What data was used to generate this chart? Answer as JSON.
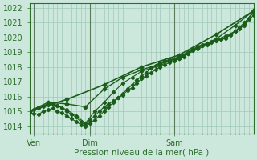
{
  "title": "",
  "xlabel": "Pression niveau de la mer( hPa )",
  "ylabel": "",
  "bg_color": "#cce8dc",
  "line_color": "#1a5c1a",
  "grid_color": "#a0c8b8",
  "axis_color": "#2d6e2d",
  "vline_color": "#5a7a5a",
  "ylim": [
    1013.5,
    1022.3
  ],
  "xlim": [
    0,
    96
  ],
  "xtick_positions": [
    2,
    26,
    62
  ],
  "xtick_labels": [
    "Ven",
    "Dim",
    "Sam"
  ],
  "vline_positions": [
    2,
    26,
    62
  ],
  "ytick_positions": [
    1014,
    1015,
    1016,
    1017,
    1018,
    1019,
    1020,
    1021,
    1022
  ],
  "ytick_labels": [
    "1014",
    "1015",
    "1016",
    "1017",
    "1018",
    "1019",
    "1020",
    "1021",
    "1022"
  ],
  "series": [
    {
      "x": [
        0,
        2,
        4,
        6,
        8,
        10,
        12,
        14,
        16,
        18,
        20,
        22,
        24,
        26,
        28,
        30,
        32,
        34,
        36,
        38,
        40,
        42,
        44,
        46,
        48,
        50,
        52,
        54,
        56,
        58,
        60,
        62,
        64,
        66,
        68,
        70,
        72,
        74,
        76,
        78,
        80,
        82,
        84,
        86,
        88,
        90,
        92,
        94,
        96
      ],
      "y": [
        1014.9,
        1014.85,
        1014.8,
        1015.0,
        1015.1,
        1015.2,
        1015.0,
        1014.9,
        1014.7,
        1014.5,
        1014.3,
        1014.1,
        1014.0,
        1014.2,
        1014.4,
        1014.7,
        1015.0,
        1015.3,
        1015.6,
        1015.9,
        1016.2,
        1016.5,
        1016.8,
        1017.1,
        1017.4,
        1017.6,
        1017.9,
        1018.1,
        1018.3,
        1018.4,
        1018.5,
        1018.5,
        1018.6,
        1018.8,
        1019.0,
        1019.2,
        1019.4,
        1019.5,
        1019.6,
        1019.7,
        1019.8,
        1019.9,
        1020.0,
        1020.2,
        1020.4,
        1020.6,
        1020.8,
        1021.2,
        1021.5
      ],
      "marker": "D",
      "markersize": 2.2,
      "linewidth": 0.8,
      "linestyle": "-"
    },
    {
      "x": [
        0,
        2,
        4,
        6,
        8,
        10,
        12,
        14,
        16,
        18,
        20,
        22,
        24,
        26,
        28,
        30,
        32,
        34,
        36,
        38,
        40,
        42,
        44,
        46,
        48,
        50,
        52,
        54,
        56,
        58,
        60,
        62,
        64,
        66,
        68,
        70,
        72,
        74,
        76,
        78,
        80,
        82,
        84,
        86,
        88,
        90,
        92,
        94,
        96
      ],
      "y": [
        1015.0,
        1015.1,
        1015.2,
        1015.35,
        1015.45,
        1015.5,
        1015.4,
        1015.2,
        1015.0,
        1014.8,
        1014.6,
        1014.3,
        1014.05,
        1014.4,
        1014.7,
        1015.0,
        1015.3,
        1015.5,
        1015.7,
        1015.9,
        1016.1,
        1016.4,
        1016.6,
        1016.9,
        1017.2,
        1017.4,
        1017.6,
        1017.8,
        1018.0,
        1018.15,
        1018.3,
        1018.4,
        1018.55,
        1018.7,
        1018.9,
        1019.1,
        1019.3,
        1019.45,
        1019.55,
        1019.65,
        1019.75,
        1019.85,
        1019.95,
        1020.15,
        1020.4,
        1020.7,
        1021.0,
        1021.3,
        1021.7
      ],
      "marker": "D",
      "markersize": 2.2,
      "linewidth": 0.8,
      "linestyle": "-"
    },
    {
      "x": [
        0,
        4,
        8,
        12,
        16,
        20,
        24,
        28,
        32,
        36,
        40,
        44,
        48,
        52,
        56,
        60,
        64,
        68,
        72,
        76,
        80,
        84,
        88,
        92,
        96
      ],
      "y": [
        1015.0,
        1015.3,
        1015.5,
        1015.4,
        1015.1,
        1014.7,
        1014.2,
        1015.0,
        1015.6,
        1016.3,
        1016.9,
        1017.3,
        1017.7,
        1017.9,
        1018.1,
        1018.4,
        1018.6,
        1018.9,
        1019.2,
        1019.5,
        1019.8,
        1020.1,
        1020.4,
        1020.9,
        1021.8
      ],
      "marker": "D",
      "markersize": 2.2,
      "linewidth": 0.8,
      "linestyle": "-"
    },
    {
      "x": [
        0,
        8,
        16,
        24,
        32,
        40,
        48,
        56,
        64,
        72,
        80,
        88,
        96
      ],
      "y": [
        1015.0,
        1015.6,
        1015.5,
        1015.3,
        1016.5,
        1017.3,
        1017.8,
        1018.2,
        1018.7,
        1019.3,
        1019.9,
        1020.8,
        1021.8
      ],
      "marker": "D",
      "markersize": 2.5,
      "linewidth": 1.0,
      "linestyle": "-"
    },
    {
      "x": [
        0,
        16,
        32,
        48,
        64,
        80,
        96
      ],
      "y": [
        1015.0,
        1015.8,
        1016.8,
        1018.0,
        1018.8,
        1020.2,
        1021.8
      ],
      "marker": "D",
      "markersize": 2.5,
      "linewidth": 1.2,
      "linestyle": "-"
    }
  ]
}
